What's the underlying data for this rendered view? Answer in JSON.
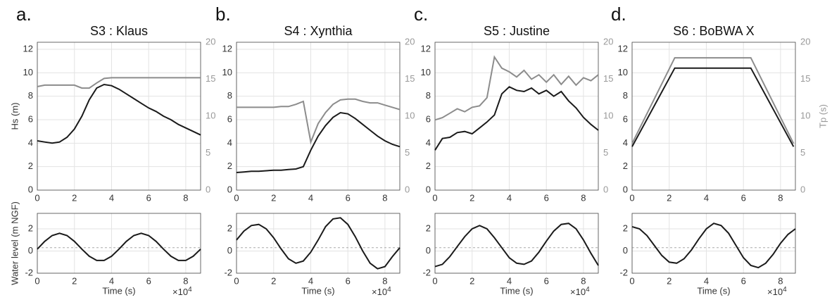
{
  "chart_data": [
    {
      "type": "line",
      "panel_label": "a.",
      "title": "S3 : Klaus",
      "ylabel": "Hs (m)",
      "x": [
        0,
        0.4,
        0.8,
        1.2,
        1.6,
        2.0,
        2.4,
        2.8,
        3.2,
        3.6,
        4.0,
        4.4,
        4.8,
        5.2,
        5.6,
        6.0,
        6.4,
        6.8,
        7.2,
        7.6,
        8.0,
        8.4,
        8.8
      ],
      "xlim": [
        0,
        8.8
      ],
      "xticks": [
        0,
        2,
        4,
        6,
        8
      ],
      "ylim": [
        0,
        12.6
      ],
      "yticks": [
        0,
        2,
        4,
        6,
        8,
        10,
        12
      ],
      "y2lim": [
        0,
        20
      ],
      "y2ticks": [
        0,
        5,
        10,
        15,
        20
      ],
      "y2_color": "#999999",
      "grid": true,
      "series": [
        {
          "color": "#1a1a1a",
          "values": [
            4.2,
            4.1,
            4.0,
            4.1,
            4.5,
            5.2,
            6.3,
            7.7,
            8.7,
            9.0,
            8.9,
            8.6,
            8.2,
            7.8,
            7.4,
            7.0,
            6.7,
            6.3,
            6.0,
            5.6,
            5.3,
            5.0,
            4.7
          ]
        },
        {
          "color": "#8c8c8c",
          "axis": "y2",
          "values": [
            14.0,
            14.2,
            14.2,
            14.2,
            14.2,
            14.2,
            13.8,
            13.8,
            14.5,
            15.1,
            15.2,
            15.2,
            15.2,
            15.2,
            15.2,
            15.2,
            15.2,
            15.2,
            15.2,
            15.2,
            15.2,
            15.2,
            15.2
          ]
        }
      ]
    },
    {
      "type": "line",
      "ylabel": "Water level (m NGF)",
      "xlabel": "Time (s)",
      "x_multiplier": {
        "base": "×10",
        "exponent": "4"
      },
      "x": [
        0,
        0.4,
        0.8,
        1.2,
        1.6,
        2.0,
        2.4,
        2.8,
        3.2,
        3.6,
        4.0,
        4.4,
        4.8,
        5.2,
        5.6,
        6.0,
        6.4,
        6.8,
        7.2,
        7.6,
        8.0,
        8.4,
        8.8
      ],
      "xlim": [
        0,
        8.8
      ],
      "xticks": [
        0,
        2,
        4,
        6,
        8
      ],
      "ylim": [
        -2,
        3.4
      ],
      "yticks": [
        -2,
        0,
        2
      ],
      "grid": true,
      "hline": 0.3,
      "hline_color": "#aaaaaa",
      "series": [
        {
          "color": "#1a1a1a",
          "values": [
            0.17,
            0.87,
            1.4,
            1.6,
            1.4,
            0.87,
            0.17,
            -0.47,
            -0.85,
            -0.85,
            -0.47,
            0.17,
            0.87,
            1.4,
            1.6,
            1.4,
            0.87,
            0.17,
            -0.47,
            -0.85,
            -0.85,
            -0.47,
            0.17
          ]
        }
      ]
    },
    {
      "type": "line",
      "panel_label": "b.",
      "title": "S4 : Xynthia",
      "x": [
        0,
        0.4,
        0.8,
        1.2,
        1.6,
        2.0,
        2.4,
        2.8,
        3.2,
        3.6,
        4.0,
        4.4,
        4.8,
        5.2,
        5.6,
        6.0,
        6.4,
        6.8,
        7.2,
        7.6,
        8.0,
        8.4,
        8.8
      ],
      "xlim": [
        0,
        8.8
      ],
      "xticks": [
        0,
        2,
        4,
        6,
        8
      ],
      "ylim": [
        0,
        12.6
      ],
      "yticks": [
        0,
        2,
        4,
        6,
        8,
        10,
        12
      ],
      "y2lim": [
        0,
        20
      ],
      "y2ticks": [
        0,
        5,
        10,
        15,
        20
      ],
      "y2_color": "#999999",
      "grid": true,
      "series": [
        {
          "color": "#1a1a1a",
          "values": [
            1.5,
            1.55,
            1.6,
            1.6,
            1.65,
            1.7,
            1.7,
            1.75,
            1.8,
            2.0,
            3.4,
            4.6,
            5.5,
            6.2,
            6.6,
            6.5,
            6.1,
            5.6,
            5.1,
            4.6,
            4.2,
            3.9,
            3.7
          ]
        },
        {
          "color": "#8c8c8c",
          "axis": "y2",
          "values": [
            11.2,
            11.2,
            11.2,
            11.2,
            11.2,
            11.2,
            11.3,
            11.3,
            11.6,
            12.0,
            6.5,
            9.0,
            10.5,
            11.6,
            12.2,
            12.3,
            12.3,
            12.0,
            11.8,
            11.8,
            11.5,
            11.2,
            10.9
          ]
        }
      ]
    },
    {
      "type": "line",
      "xlabel": "Time (s)",
      "x_multiplier": {
        "base": "×10",
        "exponent": "4"
      },
      "x": [
        0,
        0.4,
        0.8,
        1.2,
        1.6,
        2.0,
        2.4,
        2.8,
        3.2,
        3.6,
        4.0,
        4.4,
        4.8,
        5.2,
        5.6,
        6.0,
        6.4,
        6.8,
        7.2,
        7.6,
        8.0,
        8.4,
        8.8
      ],
      "xlim": [
        0,
        8.8
      ],
      "xticks": [
        0,
        2,
        4,
        6,
        8
      ],
      "ylim": [
        -2,
        3.4
      ],
      "yticks": [
        -2,
        0,
        2
      ],
      "grid": true,
      "hline": 0.3,
      "hline_color": "#aaaaaa",
      "series": [
        {
          "color": "#1a1a1a",
          "values": [
            1.0,
            1.8,
            2.3,
            2.4,
            2.0,
            1.2,
            0.2,
            -0.7,
            -1.1,
            -0.9,
            -0.1,
            1.0,
            2.2,
            2.9,
            3.0,
            2.4,
            1.3,
            0.0,
            -1.1,
            -1.6,
            -1.4,
            -0.5,
            0.3
          ]
        }
      ]
    },
    {
      "type": "line",
      "panel_label": "c.",
      "title": "S5 : Justine",
      "x": [
        0,
        0.4,
        0.8,
        1.2,
        1.6,
        2.0,
        2.4,
        2.8,
        3.2,
        3.6,
        4.0,
        4.4,
        4.8,
        5.2,
        5.6,
        6.0,
        6.4,
        6.8,
        7.2,
        7.6,
        8.0,
        8.4,
        8.8
      ],
      "xlim": [
        0,
        8.8
      ],
      "xticks": [
        0,
        2,
        4,
        6,
        8
      ],
      "ylim": [
        0,
        12.6
      ],
      "yticks": [
        0,
        2,
        4,
        6,
        8,
        10,
        12
      ],
      "y2lim": [
        0,
        20
      ],
      "y2ticks": [
        0,
        5,
        10,
        15,
        20
      ],
      "y2_color": "#999999",
      "grid": true,
      "series": [
        {
          "color": "#1a1a1a",
          "values": [
            3.4,
            4.4,
            4.5,
            4.9,
            5.0,
            4.8,
            5.3,
            5.8,
            6.4,
            8.2,
            8.8,
            8.5,
            8.4,
            8.7,
            8.2,
            8.5,
            8.0,
            8.4,
            7.6,
            7.0,
            6.2,
            5.6,
            5.1
          ]
        },
        {
          "color": "#8c8c8c",
          "axis": "y2",
          "values": [
            9.5,
            9.8,
            10.4,
            11.0,
            10.6,
            11.2,
            11.4,
            12.5,
            18.0,
            16.5,
            16.0,
            15.3,
            16.2,
            15.0,
            15.6,
            14.6,
            15.6,
            14.3,
            15.4,
            14.2,
            15.2,
            14.8,
            15.6
          ]
        }
      ]
    },
    {
      "type": "line",
      "xlabel": "Time (s)",
      "x_multiplier": {
        "base": "×10",
        "exponent": "4"
      },
      "x": [
        0,
        0.4,
        0.8,
        1.2,
        1.6,
        2.0,
        2.4,
        2.8,
        3.2,
        3.6,
        4.0,
        4.4,
        4.8,
        5.2,
        5.6,
        6.0,
        6.4,
        6.8,
        7.2,
        7.6,
        8.0,
        8.4,
        8.8
      ],
      "xlim": [
        0,
        8.8
      ],
      "xticks": [
        0,
        2,
        4,
        6,
        8
      ],
      "ylim": [
        -2,
        3.4
      ],
      "yticks": [
        -2,
        0,
        2
      ],
      "grid": true,
      "hline": 0.3,
      "hline_color": "#aaaaaa",
      "series": [
        {
          "color": "#1a1a1a",
          "values": [
            -1.4,
            -1.2,
            -0.5,
            0.4,
            1.3,
            2.0,
            2.3,
            2.0,
            1.2,
            0.3,
            -0.6,
            -1.1,
            -1.2,
            -0.9,
            -0.1,
            0.9,
            1.8,
            2.4,
            2.5,
            2.0,
            1.0,
            -0.2,
            -1.3
          ]
        }
      ]
    },
    {
      "type": "line",
      "panel_label": "d.",
      "title": "S6 : BoBWA X",
      "y2label": "Tp (s)",
      "x": [
        0,
        2.3,
        6.4,
        8.7
      ],
      "xlim": [
        0,
        8.8
      ],
      "xticks": [
        0,
        2,
        4,
        6,
        8
      ],
      "ylim": [
        0,
        12.6
      ],
      "yticks": [
        0,
        2,
        4,
        6,
        8,
        10,
        12
      ],
      "y2lim": [
        0,
        20
      ],
      "y2ticks": [
        0,
        5,
        10,
        15,
        20
      ],
      "y2_color": "#999999",
      "grid": true,
      "series": [
        {
          "color": "#1a1a1a",
          "values": [
            3.7,
            10.4,
            10.4,
            3.7
          ]
        },
        {
          "color": "#8c8c8c",
          "axis": "y2",
          "values": [
            6.3,
            17.9,
            17.9,
            6.3
          ]
        }
      ]
    },
    {
      "type": "line",
      "xlabel": "Time (s)",
      "x_multiplier": {
        "base": "×10",
        "exponent": "4"
      },
      "x": [
        0,
        0.4,
        0.8,
        1.2,
        1.6,
        2.0,
        2.4,
        2.8,
        3.2,
        3.6,
        4.0,
        4.4,
        4.8,
        5.2,
        5.6,
        6.0,
        6.4,
        6.8,
        7.2,
        7.6,
        8.0,
        8.4,
        8.8
      ],
      "xlim": [
        0,
        8.8
      ],
      "xticks": [
        0,
        2,
        4,
        6,
        8
      ],
      "ylim": [
        -2,
        3.4
      ],
      "yticks": [
        -2,
        0,
        2
      ],
      "grid": true,
      "hline": 0.3,
      "hline_color": "#aaaaaa",
      "series": [
        {
          "color": "#1a1a1a",
          "values": [
            2.2,
            2.0,
            1.4,
            0.5,
            -0.4,
            -1.0,
            -1.1,
            -0.7,
            0.1,
            1.1,
            2.0,
            2.5,
            2.3,
            1.6,
            0.5,
            -0.6,
            -1.3,
            -1.5,
            -1.1,
            -0.3,
            0.7,
            1.5,
            2.0
          ]
        }
      ]
    }
  ]
}
